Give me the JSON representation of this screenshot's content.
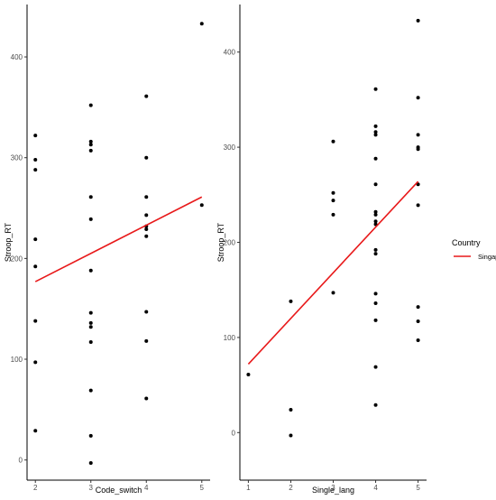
{
  "chart_data": [
    {
      "type": "scatter",
      "xlabel": "Code_switch",
      "ylabel": "Stroop_RT",
      "x_ticks": [
        2,
        3,
        4,
        5
      ],
      "y_ticks": [
        0,
        100,
        200,
        300,
        400
      ],
      "xlim": [
        1.85,
        5.15
      ],
      "ylim": [
        -20,
        452
      ],
      "grid": false,
      "points": [
        {
          "x": 2,
          "y": 322
        },
        {
          "x": 2,
          "y": 298
        },
        {
          "x": 2,
          "y": 288
        },
        {
          "x": 2,
          "y": 219
        },
        {
          "x": 2,
          "y": 192
        },
        {
          "x": 2,
          "y": 138
        },
        {
          "x": 2,
          "y": 97
        },
        {
          "x": 2,
          "y": 29
        },
        {
          "x": 3,
          "y": 352
        },
        {
          "x": 3,
          "y": 316
        },
        {
          "x": 3,
          "y": 313
        },
        {
          "x": 3,
          "y": 307
        },
        {
          "x": 3,
          "y": 261
        },
        {
          "x": 3,
          "y": 239
        },
        {
          "x": 3,
          "y": 188
        },
        {
          "x": 3,
          "y": 146
        },
        {
          "x": 3,
          "y": 136
        },
        {
          "x": 3,
          "y": 132
        },
        {
          "x": 3,
          "y": 117
        },
        {
          "x": 3,
          "y": 69
        },
        {
          "x": 3,
          "y": 24
        },
        {
          "x": 3,
          "y": -3
        },
        {
          "x": 4,
          "y": 361
        },
        {
          "x": 4,
          "y": 300
        },
        {
          "x": 4,
          "y": 261
        },
        {
          "x": 4,
          "y": 243
        },
        {
          "x": 4,
          "y": 232
        },
        {
          "x": 4,
          "y": 229
        },
        {
          "x": 4,
          "y": 222
        },
        {
          "x": 4,
          "y": 147
        },
        {
          "x": 4,
          "y": 118
        },
        {
          "x": 4,
          "y": 61
        },
        {
          "x": 5,
          "y": 433
        },
        {
          "x": 5,
          "y": 253
        }
      ],
      "fit_line": {
        "series": "Singapore",
        "x": [
          2,
          5
        ],
        "y": [
          177,
          261
        ]
      }
    },
    {
      "type": "scatter",
      "xlabel": "Single_lang",
      "ylabel": "Stroop_RT",
      "x_ticks": [
        1,
        2,
        3,
        4,
        5
      ],
      "y_ticks": [
        0,
        100,
        200,
        300,
        400
      ],
      "xlim": [
        0.8,
        5.2
      ],
      "ylim": [
        -50,
        450
      ],
      "grid": false,
      "points": [
        {
          "x": 1,
          "y": 61
        },
        {
          "x": 2,
          "y": 138
        },
        {
          "x": 2,
          "y": 24
        },
        {
          "x": 2,
          "y": -3
        },
        {
          "x": 3,
          "y": 306
        },
        {
          "x": 3,
          "y": 252
        },
        {
          "x": 3,
          "y": 244
        },
        {
          "x": 3,
          "y": 229
        },
        {
          "x": 3,
          "y": 147
        },
        {
          "x": 4,
          "y": 361
        },
        {
          "x": 4,
          "y": 322
        },
        {
          "x": 4,
          "y": 316
        },
        {
          "x": 4,
          "y": 313
        },
        {
          "x": 4,
          "y": 288
        },
        {
          "x": 4,
          "y": 261
        },
        {
          "x": 4,
          "y": 232
        },
        {
          "x": 4,
          "y": 229
        },
        {
          "x": 4,
          "y": 222
        },
        {
          "x": 4,
          "y": 219
        },
        {
          "x": 4,
          "y": 192
        },
        {
          "x": 4,
          "y": 188
        },
        {
          "x": 4,
          "y": 146
        },
        {
          "x": 4,
          "y": 136
        },
        {
          "x": 4,
          "y": 118
        },
        {
          "x": 4,
          "y": 69
        },
        {
          "x": 4,
          "y": 29
        },
        {
          "x": 5,
          "y": 433
        },
        {
          "x": 5,
          "y": 352
        },
        {
          "x": 5,
          "y": 313
        },
        {
          "x": 5,
          "y": 300
        },
        {
          "x": 5,
          "y": 298
        },
        {
          "x": 5,
          "y": 261
        },
        {
          "x": 5,
          "y": 239
        },
        {
          "x": 5,
          "y": 132
        },
        {
          "x": 5,
          "y": 117
        },
        {
          "x": 5,
          "y": 97
        }
      ],
      "fit_line": {
        "series": "Singapore",
        "x": [
          1,
          5
        ],
        "y": [
          72,
          264
        ]
      }
    }
  ],
  "legend": {
    "title": "Country",
    "placement": "right",
    "entries": [
      {
        "label": "Singapore",
        "color": "#e8191a"
      }
    ]
  },
  "colors": {
    "points": "#000000",
    "fit": "#e8191a"
  }
}
